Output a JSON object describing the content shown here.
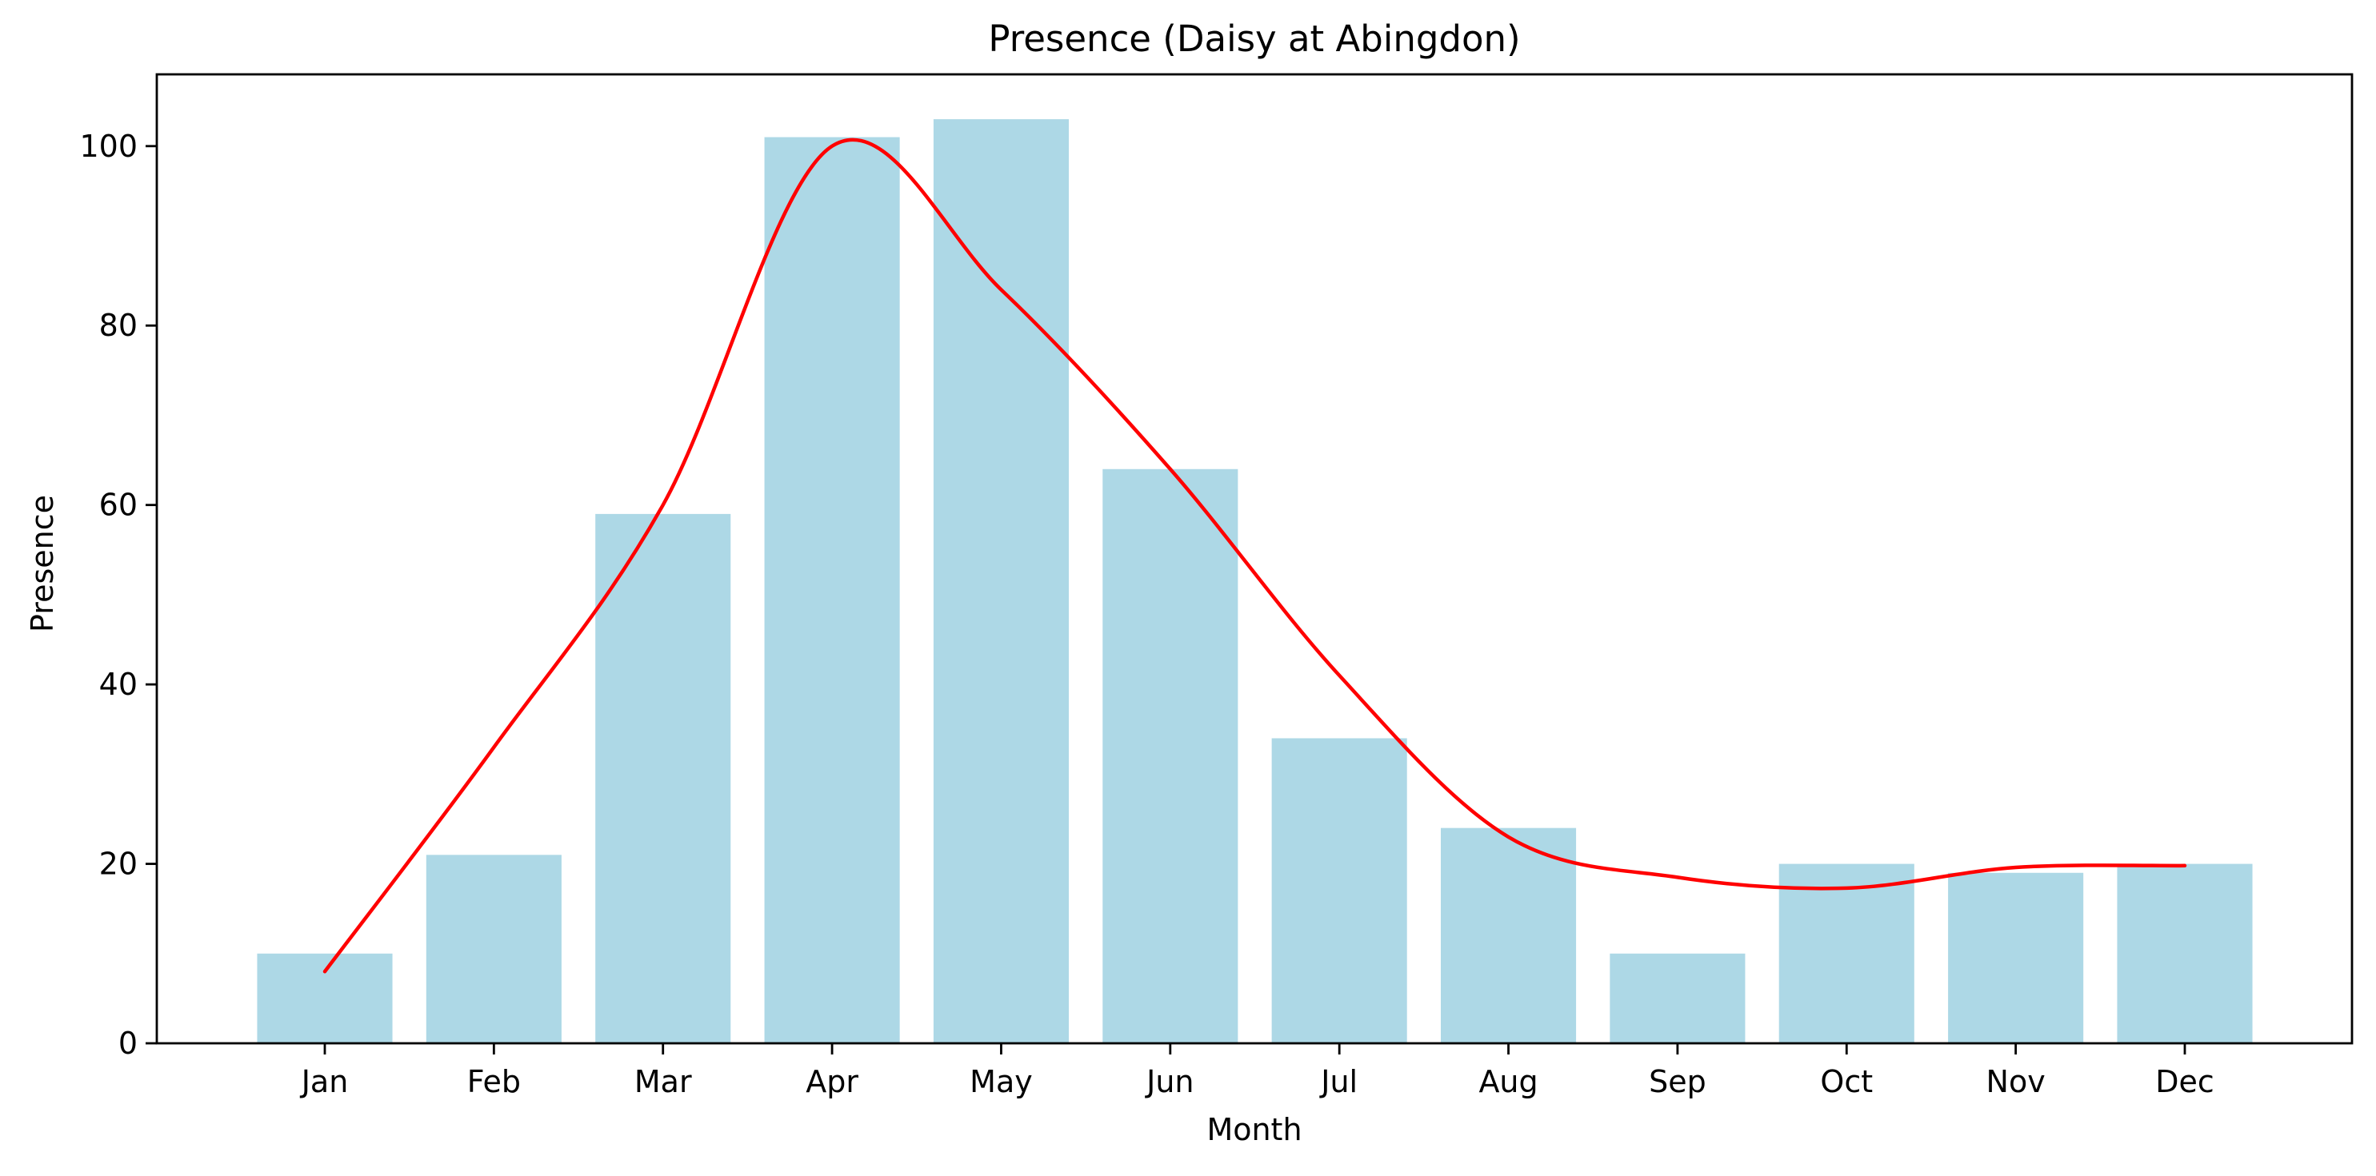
{
  "chart_data": {
    "type": "bar",
    "title": "Presence (Daisy at Abingdon)",
    "xlabel": "Month",
    "ylabel": "Presence",
    "categories": [
      "Jan",
      "Feb",
      "Mar",
      "Apr",
      "May",
      "Jun",
      "Jul",
      "Aug",
      "Sep",
      "Oct",
      "Nov",
      "Dec"
    ],
    "values": [
      10,
      21,
      59,
      101,
      103,
      64,
      34,
      24,
      10,
      20,
      19,
      20
    ],
    "trend_line": {
      "type": "line",
      "style": "smoothed",
      "values": [
        8,
        33,
        60,
        100,
        84,
        64,
        41,
        23,
        18.5,
        17.3,
        19.6,
        19.8
      ]
    },
    "ylim": [
      0,
      108
    ],
    "yticks": [
      0,
      20,
      40,
      60,
      80,
      100
    ],
    "grid": false,
    "legend": "none",
    "colors": {
      "bar": "#add8e6",
      "line": "#ff0000",
      "axis": "#000000"
    }
  }
}
